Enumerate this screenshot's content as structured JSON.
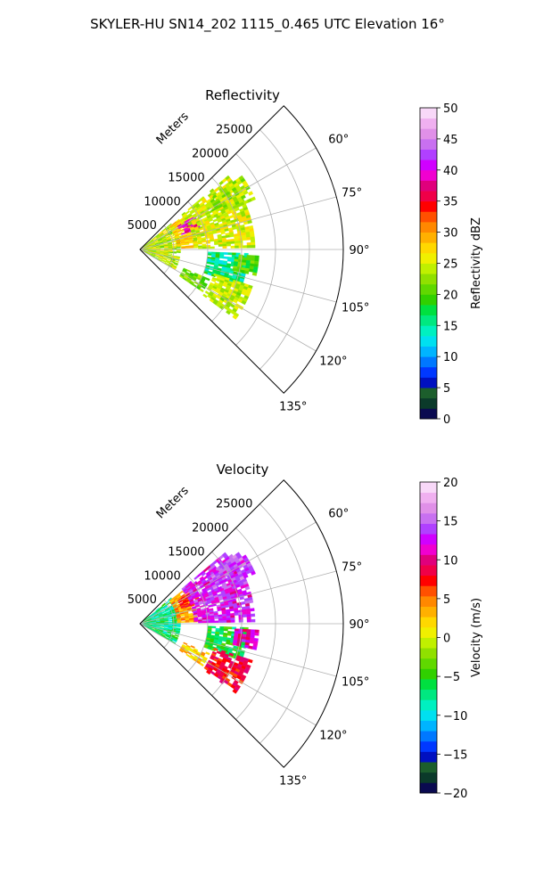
{
  "figure": {
    "suptitle": "SKYLER-HU  SN14_202  1115_0.465 UTC Elevation 16°"
  },
  "chart_data": [
    {
      "type": "heatmap",
      "projection": "polar-sector",
      "title": "Reflectivity",
      "r_axis_label": "Meters",
      "r_ticks": [
        5000,
        10000,
        15000,
        20000,
        25000
      ],
      "r_tick_labels": [
        "5000",
        "10000",
        "15000",
        "20000",
        "25000"
      ],
      "r_max": 30000,
      "theta_range_deg": [
        45,
        135
      ],
      "theta_ticks": [
        60,
        75,
        90,
        105,
        120,
        135
      ],
      "theta_tick_labels": [
        "60°",
        "75°",
        "90°",
        "105°",
        "120°",
        "135°"
      ],
      "grid": true,
      "colorbar": {
        "label": "Reflectivity dBZ",
        "range": [
          0,
          50
        ],
        "ticks": [
          0,
          5,
          10,
          15,
          20,
          25,
          30,
          35,
          40,
          45,
          50
        ],
        "tick_labels": [
          "0",
          "5",
          "10",
          "15",
          "20",
          "25",
          "30",
          "35",
          "40",
          "45",
          "50"
        ],
        "colors": [
          "#0a0a50",
          "#0b3a2a",
          "#1c5e2c",
          "#0010c0",
          "#0038ff",
          "#0078ff",
          "#00b4ff",
          "#00e0f0",
          "#00f0c0",
          "#00e880",
          "#00e040",
          "#30d000",
          "#60d800",
          "#90e000",
          "#c0f000",
          "#f0f000",
          "#ffd800",
          "#ffb000",
          "#ff8800",
          "#ff5000",
          "#ff0000",
          "#f00048",
          "#e0007c",
          "#f000d0",
          "#d000ff",
          "#b040ff",
          "#c870f0",
          "#e090e8",
          "#f0b0f0",
          "#f8d8f8"
        ]
      }
    },
    {
      "type": "heatmap",
      "projection": "polar-sector",
      "title": "Velocity",
      "r_axis_label": "Meters",
      "r_ticks": [
        5000,
        10000,
        15000,
        20000,
        25000
      ],
      "r_tick_labels": [
        "5000",
        "10000",
        "15000",
        "20000",
        "25000"
      ],
      "r_max": 30000,
      "theta_range_deg": [
        45,
        135
      ],
      "theta_ticks": [
        60,
        75,
        90,
        105,
        120,
        135
      ],
      "theta_tick_labels": [
        "60°",
        "75°",
        "90°",
        "105°",
        "120°",
        "135°"
      ],
      "grid": true,
      "colorbar": {
        "label": "Velocity (m/s)",
        "range": [
          -20,
          20
        ],
        "ticks": [
          -20,
          -15,
          -10,
          -5,
          0,
          5,
          10,
          15,
          20
        ],
        "tick_labels": [
          "−20",
          "−15",
          "−10",
          "−5",
          "0",
          "5",
          "10",
          "15",
          "20"
        ],
        "colors": [
          "#0a0a50",
          "#0b3a2a",
          "#1c5e2c",
          "#0010c0",
          "#0038ff",
          "#0078ff",
          "#00b4ff",
          "#00e0f0",
          "#00f0c0",
          "#00e880",
          "#00e040",
          "#30d000",
          "#60d800",
          "#90e000",
          "#c0f000",
          "#f0f000",
          "#ffd800",
          "#ffb000",
          "#ff8800",
          "#ff5000",
          "#ff0000",
          "#f00048",
          "#e0007c",
          "#f000d0",
          "#d000ff",
          "#b040ff",
          "#c870f0",
          "#e090e8",
          "#f0b0f0",
          "#f8d8f8"
        ]
      }
    }
  ]
}
